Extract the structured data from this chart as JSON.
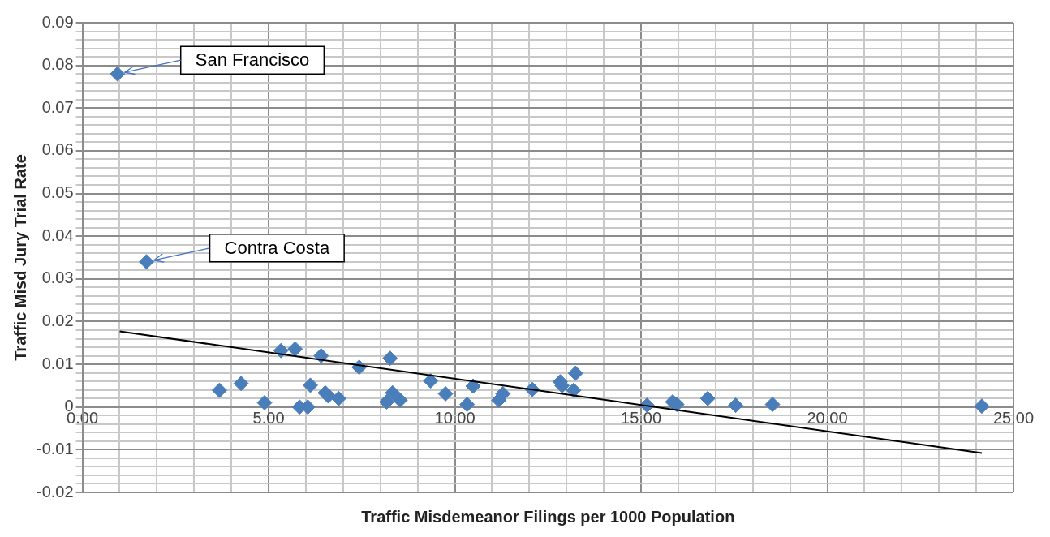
{
  "chart_data": {
    "type": "scatter",
    "xlabel": "Traffic Misdemeanor Filings per 1000 Population",
    "ylabel": "Traffic Misd Jury Trial Rate",
    "xlim": [
      0,
      25
    ],
    "ylim": [
      -0.02,
      0.09
    ],
    "xticks": [
      {
        "value": 0,
        "label": "0.00"
      },
      {
        "value": 1,
        "label": null
      },
      {
        "value": 2,
        "label": null
      },
      {
        "value": 3,
        "label": null
      },
      {
        "value": 4,
        "label": null
      },
      {
        "value": 5,
        "label": "5.00"
      },
      {
        "value": 6,
        "label": null
      },
      {
        "value": 7,
        "label": null
      },
      {
        "value": 8,
        "label": null
      },
      {
        "value": 9,
        "label": null
      },
      {
        "value": 10,
        "label": "10.00"
      },
      {
        "value": 11,
        "label": null
      },
      {
        "value": 12,
        "label": null
      },
      {
        "value": 13,
        "label": null
      },
      {
        "value": 14,
        "label": null
      },
      {
        "value": 15,
        "label": "15.00"
      },
      {
        "value": 16,
        "label": null
      },
      {
        "value": 17,
        "label": null
      },
      {
        "value": 18,
        "label": null
      },
      {
        "value": 19,
        "label": null
      },
      {
        "value": 20,
        "label": "20.00"
      },
      {
        "value": 21,
        "label": null
      },
      {
        "value": 22,
        "label": null
      },
      {
        "value": 23,
        "label": null
      },
      {
        "value": 24,
        "label": null
      },
      {
        "value": 25,
        "label": "25.00"
      }
    ],
    "yticks": [
      -0.02,
      {
        "value": -0.018,
        "label": null
      },
      {
        "value": -0.016,
        "label": null
      },
      {
        "value": -0.014,
        "label": null
      },
      {
        "value": -0.012,
        "label": null
      },
      -0.01,
      {
        "value": -0.008,
        "label": null
      },
      {
        "value": -0.006,
        "label": null
      },
      {
        "value": -0.004,
        "label": null
      },
      {
        "value": -0.002,
        "label": null
      },
      0,
      {
        "value": 0.002,
        "label": null
      },
      {
        "value": 0.004,
        "label": null
      },
      {
        "value": 0.006,
        "label": null
      },
      {
        "value": 0.008,
        "label": null
      },
      0.01,
      {
        "value": 0.012,
        "label": null
      },
      {
        "value": 0.014,
        "label": null
      },
      {
        "value": 0.016,
        "label": null
      },
      {
        "value": 0.018,
        "label": null
      },
      0.02,
      {
        "value": 0.022,
        "label": null
      },
      {
        "value": 0.024,
        "label": null
      },
      {
        "value": 0.026,
        "label": null
      },
      {
        "value": 0.028,
        "label": null
      },
      0.03,
      {
        "value": 0.032,
        "label": null
      },
      {
        "value": 0.034,
        "label": null
      },
      {
        "value": 0.036,
        "label": null
      },
      {
        "value": 0.038,
        "label": null
      },
      0.04,
      {
        "value": 0.042,
        "label": null
      },
      {
        "value": 0.044,
        "label": null
      },
      {
        "value": 0.046,
        "label": null
      },
      {
        "value": 0.048,
        "label": null
      },
      0.05,
      {
        "value": 0.052,
        "label": null
      },
      {
        "value": 0.054,
        "label": null
      },
      {
        "value": 0.056,
        "label": null
      },
      {
        "value": 0.058,
        "label": null
      },
      0.06,
      {
        "value": 0.062,
        "label": null
      },
      {
        "value": 0.064,
        "label": null
      },
      {
        "value": 0.066,
        "label": null
      },
      {
        "value": 0.068,
        "label": null
      },
      0.07,
      {
        "value": 0.072,
        "label": null
      },
      {
        "value": 0.074,
        "label": null
      },
      {
        "value": 0.076,
        "label": null
      },
      {
        "value": 0.078,
        "label": null
      },
      0.08,
      {
        "value": 0.082,
        "label": null
      },
      {
        "value": 0.084,
        "label": null
      },
      {
        "value": 0.086,
        "label": null
      },
      {
        "value": 0.088,
        "label": null
      },
      0.09
    ],
    "grid": true,
    "marker": "diamond",
    "series": [
      {
        "color": "#4a7ebb",
        "x": [
          0.94,
          1.72,
          3.68,
          4.26,
          4.89,
          5.33,
          5.71,
          5.83,
          6.05,
          6.12,
          6.41,
          6.52,
          6.6,
          6.88,
          7.43,
          8.26,
          8.17,
          8.33,
          8.53,
          9.35,
          9.75,
          10.33,
          10.49,
          11.18,
          11.29,
          12.08,
          12.83,
          12.88,
          13.19,
          13.24,
          15.16,
          15.85,
          15.96,
          16.79,
          17.54,
          18.53,
          24.15
        ],
        "values": [
          0.078,
          0.034,
          0.0039,
          0.0055,
          0.001,
          0.0132,
          0.0136,
          0.0,
          0.0,
          0.0051,
          0.012,
          0.0033,
          0.0026,
          0.002,
          0.0093,
          0.0114,
          0.0012,
          0.0033,
          0.0016,
          0.0061,
          0.0031,
          0.0006,
          0.0049,
          0.0016,
          0.0031,
          0.0041,
          0.0059,
          0.005,
          0.0039,
          0.0079,
          0.0004,
          0.0012,
          0.0006,
          0.002,
          0.0004,
          0.0006,
          0.0002
        ]
      },
      {
        "type": "line",
        "color": "#000000",
        "marker": "none",
        "line_style": "solid",
        "x": [
          1.0,
          24.15
        ],
        "values": [
          0.0177,
          -0.0108
        ]
      }
    ],
    "annotations": [
      {
        "text": "San Francisco",
        "x": 0.94,
        "y": 0.078
      },
      {
        "text": "Contra Costa",
        "x": 1.72,
        "y": 0.034
      }
    ]
  }
}
